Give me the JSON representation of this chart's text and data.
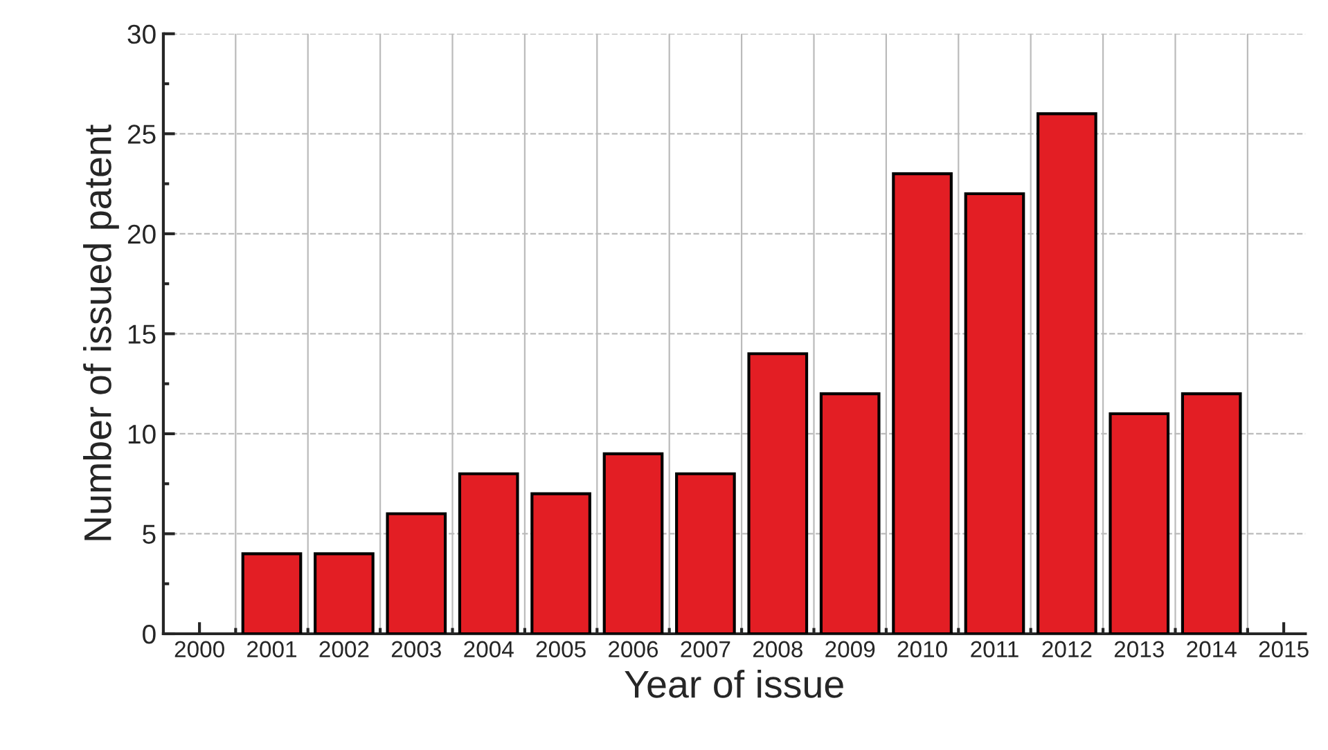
{
  "chart_data": {
    "type": "bar",
    "xlabel": "Year of issue",
    "ylabel": "Number of issued patent",
    "x": [
      2001,
      2002,
      2003,
      2004,
      2005,
      2006,
      2007,
      2008,
      2009,
      2010,
      2011,
      2012,
      2013,
      2014
    ],
    "values": [
      4,
      4,
      6,
      8,
      7,
      9,
      8,
      14,
      12,
      23,
      22,
      26,
      11,
      12
    ],
    "color": "#e31e24",
    "xlim": [
      1999.5,
      2015.3
    ],
    "xticks": [
      2000,
      2001,
      2002,
      2003,
      2004,
      2005,
      2006,
      2007,
      2008,
      2009,
      2010,
      2011,
      2012,
      2013,
      2014,
      2015
    ],
    "ylim": [
      0,
      30
    ],
    "yticks": [
      0,
      5,
      10,
      15,
      20,
      25,
      30
    ],
    "grid": true
  }
}
